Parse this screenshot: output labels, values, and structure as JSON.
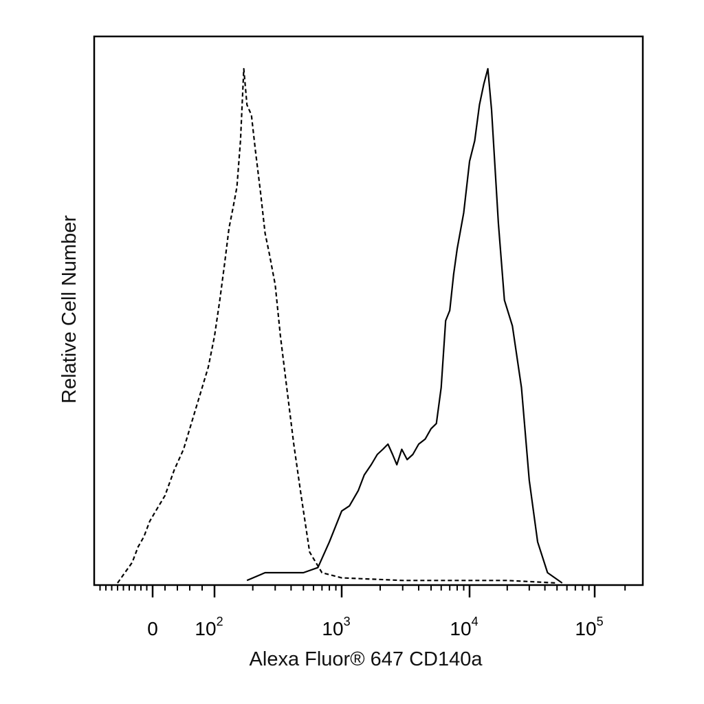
{
  "chart_data": {
    "type": "line",
    "xlabel": "Alexa Fluor® 647 CD140a",
    "ylabel": "Relative Cell Number",
    "x_scale": "biexponential",
    "x_ticks": [
      {
        "value": 0,
        "base": "0",
        "exp": ""
      },
      {
        "value": 100,
        "base": "10",
        "exp": "2"
      },
      {
        "value": 1000,
        "base": "10",
        "exp": "3"
      },
      {
        "value": 10000,
        "base": "10",
        "exp": "4"
      },
      {
        "value": 100000,
        "base": "10",
        "exp": "5"
      }
    ],
    "series": [
      {
        "style": "dashed",
        "color": "#000000",
        "x": [
          -120,
          -95,
          -70,
          -50,
          -30,
          -10,
          5,
          20,
          35,
          50,
          60,
          70,
          80,
          90,
          100,
          110,
          120,
          130,
          140,
          150,
          160,
          170,
          180,
          195,
          210,
          230,
          250,
          270,
          300,
          330,
          370,
          420,
          480,
          560,
          700,
          1000,
          3000,
          20000,
          50000
        ],
        "y": [
          0,
          2,
          4,
          7,
          9,
          12,
          14,
          17,
          22,
          26,
          30,
          34,
          38,
          42,
          48,
          55,
          62,
          69,
          73,
          77,
          86,
          100,
          93,
          91,
          84,
          76,
          68,
          64,
          58,
          48,
          38,
          27,
          17,
          6,
          2,
          1,
          0.5,
          0.5,
          0
        ]
      },
      {
        "style": "solid",
        "color": "#000000",
        "x": [
          180,
          250,
          350,
          500,
          650,
          800,
          1000,
          1150,
          1350,
          1500,
          1700,
          1900,
          2100,
          2300,
          2500,
          2700,
          2950,
          3250,
          3600,
          4000,
          4500,
          5000,
          5500,
          6000,
          6500,
          7000,
          7500,
          8000,
          9000,
          10000,
          11000,
          12000,
          13000,
          14000,
          15000,
          17000,
          19000,
          22000,
          26000,
          30000,
          35000,
          42000,
          55000
        ],
        "y": [
          0.5,
          2,
          2,
          2,
          3,
          8,
          14,
          15,
          18,
          21,
          23,
          25,
          26,
          27,
          25,
          23,
          26,
          24,
          25,
          27,
          28,
          30,
          31,
          38,
          51,
          53,
          60,
          65,
          72,
          82,
          86,
          93,
          97,
          100,
          92,
          70,
          55,
          50,
          38,
          20,
          8,
          2,
          0
        ]
      }
    ]
  }
}
